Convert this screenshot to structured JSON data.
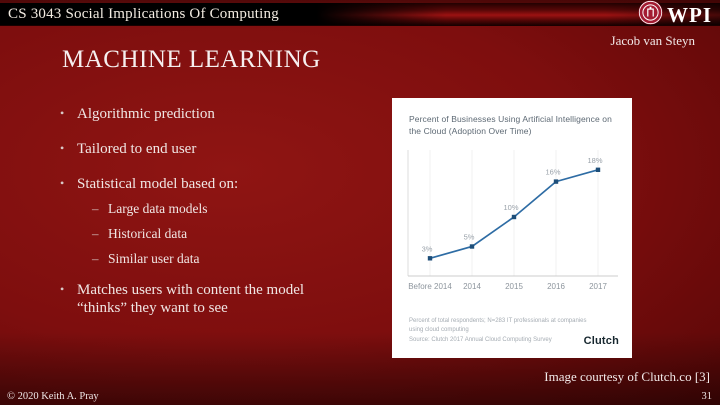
{
  "header": {
    "course_title": "CS 3043 Social Implications Of Computing",
    "logo_text": "WPI",
    "author": "Jacob van Steyn"
  },
  "slide": {
    "title": "MACHINE LEARNING",
    "bullets": [
      "Algorithmic prediction",
      "Tailored to end user",
      "Statistical model based on:",
      "Matches users with content the model “thinks” they want to see"
    ],
    "sub_bullets": [
      "Large data models",
      "Historical data",
      "Similar user data"
    ]
  },
  "chart_data": {
    "type": "line",
    "title": "Percent of Businesses Using Artificial Intelligence on the Cloud (Adoption Over Time)",
    "categories": [
      "Before 2014",
      "2014",
      "2015",
      "2016",
      "2017"
    ],
    "values": [
      3,
      5,
      10,
      16,
      18
    ],
    "point_labels": [
      "3%",
      "5%",
      "10%",
      "16%",
      "18%"
    ],
    "ylim": [
      0,
      20
    ],
    "grid": "vertical",
    "legend": "none",
    "line_color": "#2e6ca4",
    "marker_color": "#1d4e79",
    "label_color": "#99a1a9",
    "tick_color": "#8d959d",
    "footnote_lines": [
      "Percent of total respondents; N=283 IT professionals at companies",
      "using cloud computing",
      "Source: Clutch 2017 Annual Cloud Computing Survey"
    ],
    "brand": "Clutch"
  },
  "footer": {
    "image_credit": "Image courtesy of Clutch.co [3]",
    "copyright": "© 2020 Keith A. Pray",
    "page_number": "31"
  },
  "colors": {
    "slide_accent": "#8f1513",
    "seal_crimson": "#a31c32",
    "card_bg": "#ffffff"
  }
}
